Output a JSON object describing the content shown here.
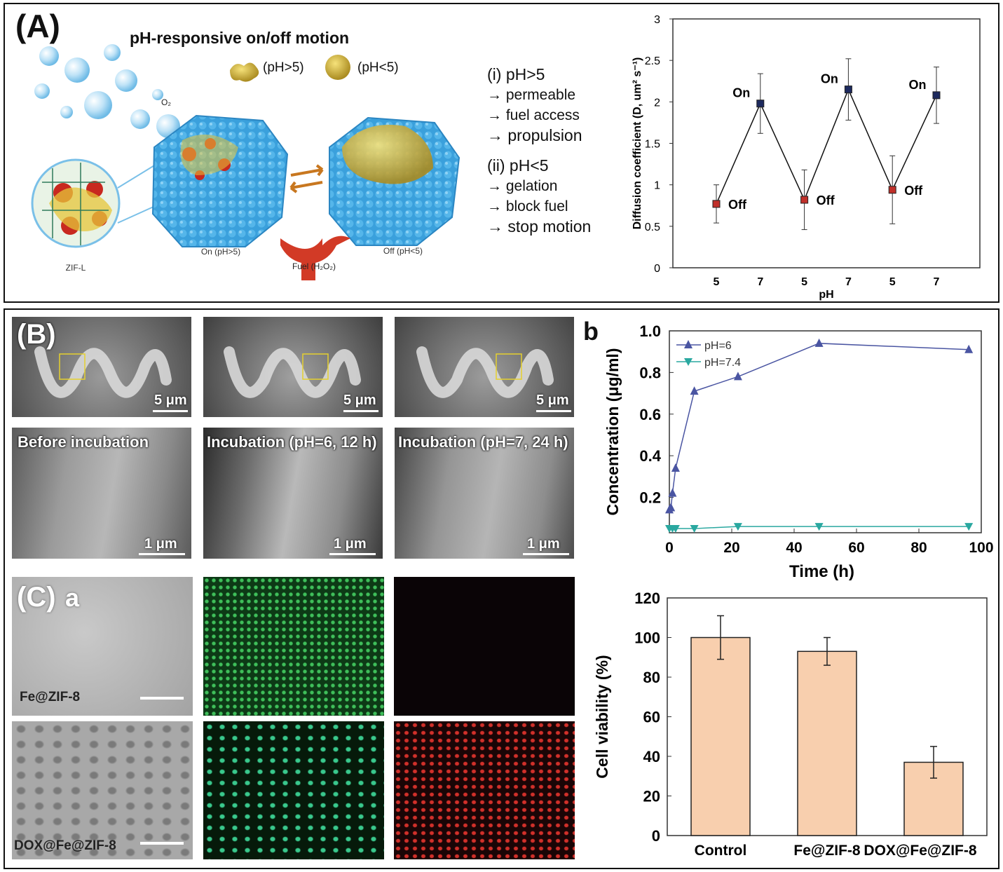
{
  "panel_a": {
    "letter": "(A)",
    "title": "pH-responsive on/off motion",
    "legend_open": "(pH>5)",
    "legend_closed": "(pH<5)",
    "o2_label": "O₂",
    "zif_label": "ZIF-L",
    "on_label": "On (pH>5)",
    "off_label": "Off (pH<5)",
    "fuel_label": "Fuel (H₂O₂)",
    "notes": {
      "head1": "(i) pH>5",
      "i1": "→ permeable",
      "i2": "→ fuel access",
      "i3": "→ propulsion",
      "head2": "(ii) pH<5",
      "ii1": "→ gelation",
      "ii2": "→ block fuel",
      "ii3": "→ stop motion"
    }
  },
  "panel_b": {
    "letter": "(B)",
    "scale_top": "5 μm",
    "scale_bottom": "1 μm",
    "captions": [
      "Before incubation",
      "Incubation (pH=6, 12 h)",
      "Incubation (pH=7, 24 h)"
    ]
  },
  "panel_b_small": {
    "letter": "b"
  },
  "panel_c": {
    "letter": "(C)",
    "sub": "a",
    "row1_label": "Fe@ZIF-8",
    "row2_label": "DOX@Fe@ZIF-8"
  },
  "colors": {
    "blue_series": "#4a55a2",
    "green_series": "#2aa8a0",
    "bar_fill": "#f8cfae",
    "marker_red": "#c0302a",
    "marker_navy": "#1d2a5e"
  },
  "chart_data": [
    {
      "id": "diffusion",
      "type": "line",
      "xlabel": "pH",
      "ylabel": "Diffusion coefficient (D, um² s⁻¹)",
      "categories": [
        "5",
        "7",
        "5",
        "7",
        "5",
        "7"
      ],
      "values": [
        0.77,
        1.98,
        0.82,
        2.15,
        0.94,
        2.08
      ],
      "errors": [
        0.23,
        0.36,
        0.36,
        0.37,
        0.41,
        0.34
      ],
      "point_labels": [
        "Off",
        "On",
        "Off",
        "On",
        "Off",
        "On"
      ],
      "ylim": [
        0,
        3
      ],
      "yticks": [
        "0",
        "0.5",
        "1",
        "1.5",
        "2",
        "2.5",
        "3"
      ]
    },
    {
      "id": "release",
      "type": "line",
      "xlabel": "Time (h)",
      "ylabel": "Concentration (μg/ml)",
      "xlim": [
        0,
        100
      ],
      "ylim": [
        0.03,
        1.0
      ],
      "xticks": [
        "0",
        "20",
        "40",
        "60",
        "80",
        "100"
      ],
      "yticks": [
        "0.2",
        "0.4",
        "0.6",
        "0.8",
        "1.0"
      ],
      "series": [
        {
          "name": "pH=6",
          "x": [
            0,
            0.5,
            1,
            2,
            8,
            22,
            48,
            96
          ],
          "y": [
            0.14,
            0.15,
            0.22,
            0.34,
            0.71,
            0.78,
            0.94,
            0.91
          ]
        },
        {
          "name": "pH=7.4",
          "x": [
            0,
            1,
            2,
            8,
            22,
            48,
            96
          ],
          "y": [
            0.05,
            0.05,
            0.05,
            0.05,
            0.06,
            0.06,
            0.06
          ]
        }
      ]
    },
    {
      "id": "viability",
      "type": "bar",
      "ylabel": "Cell viability (%)",
      "categories": [
        "Control",
        "Fe@ZIF-8",
        "DOX@Fe@ZIF-8"
      ],
      "values": [
        100,
        93,
        37
      ],
      "errors": [
        11,
        7,
        8
      ],
      "ylim": [
        0,
        120
      ],
      "yticks": [
        "0",
        "20",
        "40",
        "60",
        "80",
        "100",
        "120"
      ]
    }
  ]
}
